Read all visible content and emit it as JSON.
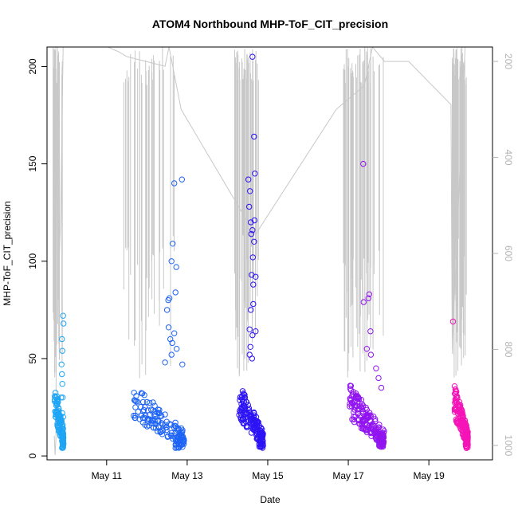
{
  "chart_data": {
    "type": "scatter",
    "title": "ATOM4 Northbound MHP-ToF_CIT_precision",
    "xlabel": "Date",
    "ylabel": "MHP-ToF_CIT_precision",
    "x_unit": "days",
    "xlim": [
      9.52,
      20.58
    ],
    "ylim": [
      -2,
      210
    ],
    "x_ticks": [
      {
        "value": 11,
        "label": "May 11"
      },
      {
        "value": 13,
        "label": "May 13"
      },
      {
        "value": 15,
        "label": "May 15"
      },
      {
        "value": 17,
        "label": "May 17"
      },
      {
        "value": 19,
        "label": "May 19"
      }
    ],
    "y_ticks": [
      0,
      50,
      100,
      150,
      200
    ],
    "secondary_axis": {
      "side": "right",
      "reversed": true,
      "ylim": [
        1030,
        170
      ],
      "ticks": [
        200,
        400,
        600,
        800,
        1000
      ],
      "color": "#b4b4b4"
    },
    "colors": {
      "clusters": [
        "#1ea5f5",
        "#1e64f5",
        "#2d14f5",
        "#9114f0",
        "#f514b8"
      ],
      "line": "#c8c8c8",
      "axis": "#000000"
    },
    "grid": false,
    "legend": false,
    "clusters": [
      {
        "x_range": [
          9.67,
          9.93
        ],
        "outliers": [
          [
            9.92,
            72
          ],
          [
            9.93,
            68
          ],
          [
            9.89,
            60
          ],
          [
            9.9,
            54
          ],
          [
            9.88,
            47
          ],
          [
            9.89,
            42
          ],
          [
            9.9,
            37
          ],
          [
            9.87,
            30
          ],
          [
            9.91,
            30
          ],
          [
            9.9,
            22
          ],
          [
            9.92,
            20
          ],
          [
            9.88,
            18
          ],
          [
            9.91,
            16
          ],
          [
            9.92,
            14
          ]
        ]
      },
      {
        "x_range": [
          11.43,
          12.93
        ],
        "outliers": [
          [
            12.53,
            80
          ],
          [
            12.56,
            81
          ],
          [
            12.5,
            75
          ],
          [
            12.58,
            60
          ],
          [
            12.68,
            63
          ],
          [
            12.71,
            84
          ],
          [
            12.61,
            100
          ],
          [
            12.64,
            109
          ],
          [
            12.68,
            140
          ],
          [
            12.87,
            142
          ],
          [
            12.73,
            97
          ],
          [
            12.63,
            58
          ],
          [
            12.54,
            66
          ],
          [
            12.88,
            47
          ],
          [
            12.45,
            48
          ],
          [
            12.61,
            52
          ],
          [
            12.74,
            55
          ]
        ]
      },
      {
        "x_range": [
          14.18,
          14.89
        ],
        "outliers": [
          [
            14.52,
            142
          ],
          [
            14.56,
            136
          ],
          [
            14.54,
            128
          ],
          [
            14.58,
            120
          ],
          [
            14.59,
            114
          ],
          [
            14.62,
            116
          ],
          [
            14.66,
            110
          ],
          [
            14.62,
            205
          ],
          [
            14.66,
            164
          ],
          [
            14.68,
            145
          ],
          [
            14.67,
            121
          ],
          [
            14.63,
            102
          ],
          [
            14.6,
            93
          ],
          [
            14.64,
            88
          ],
          [
            14.58,
            75
          ],
          [
            14.7,
            92
          ],
          [
            14.55,
            65
          ],
          [
            14.7,
            64
          ],
          [
            14.57,
            56
          ],
          [
            14.55,
            52
          ],
          [
            14.61,
            50
          ],
          [
            14.62,
            62
          ],
          [
            14.64,
            78
          ]
        ]
      },
      {
        "x_range": [
          16.88,
          17.89
        ],
        "outliers": [
          [
            17.37,
            150
          ],
          [
            17.38,
            79
          ],
          [
            17.52,
            83
          ],
          [
            17.5,
            81
          ],
          [
            17.55,
            64
          ],
          [
            17.46,
            55
          ],
          [
            17.56,
            52
          ],
          [
            17.69,
            45
          ],
          [
            17.75,
            40
          ],
          [
            17.82,
            35
          ]
        ]
      },
      {
        "x_range": [
          19.58,
          19.97
        ],
        "outliers": [
          [
            19.6,
            69
          ]
        ]
      }
    ],
    "line_series_right_axis": [
      [
        9.7,
        980
      ],
      [
        9.72,
        1020
      ],
      [
        9.74,
        990
      ],
      [
        9.78,
        170
      ],
      [
        9.82,
        620
      ],
      [
        9.86,
        520
      ],
      [
        9.92,
        170
      ],
      [
        10.2,
        140
      ],
      [
        11.3,
        180
      ],
      [
        11.5,
        190
      ],
      [
        12.45,
        210
      ],
      [
        12.55,
        170
      ],
      [
        12.85,
        300
      ],
      [
        14.4,
        520
      ],
      [
        14.7,
        560
      ],
      [
        16.7,
        300
      ],
      [
        17.4,
        250
      ],
      [
        17.6,
        170
      ],
      [
        17.9,
        200
      ],
      [
        18.5,
        200
      ],
      [
        19.55,
        290
      ],
      [
        19.58,
        800
      ],
      [
        19.9,
        170
      ]
    ]
  }
}
